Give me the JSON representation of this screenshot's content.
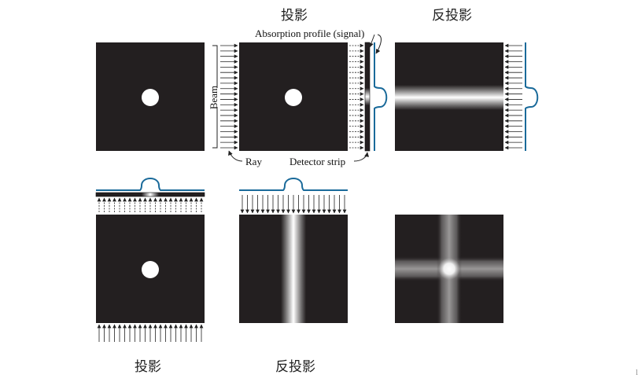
{
  "captions": {
    "top_projection": "投影",
    "top_backprojection": "反投影",
    "bottom_projection": "投影",
    "bottom_backprojection": "反投影"
  },
  "labels": {
    "absorption_profile": "Absorption profile (signal)",
    "beam": "Beam",
    "ray": "Ray",
    "detector_strip": "Detector strip"
  },
  "edge_mark": "l",
  "colors": {
    "background": "#ffffff",
    "panel": "#231f20",
    "object": "#ffffff",
    "profile_line": "#1a6a9a",
    "arrow": "#222222",
    "label_text": "#111111"
  }
}
